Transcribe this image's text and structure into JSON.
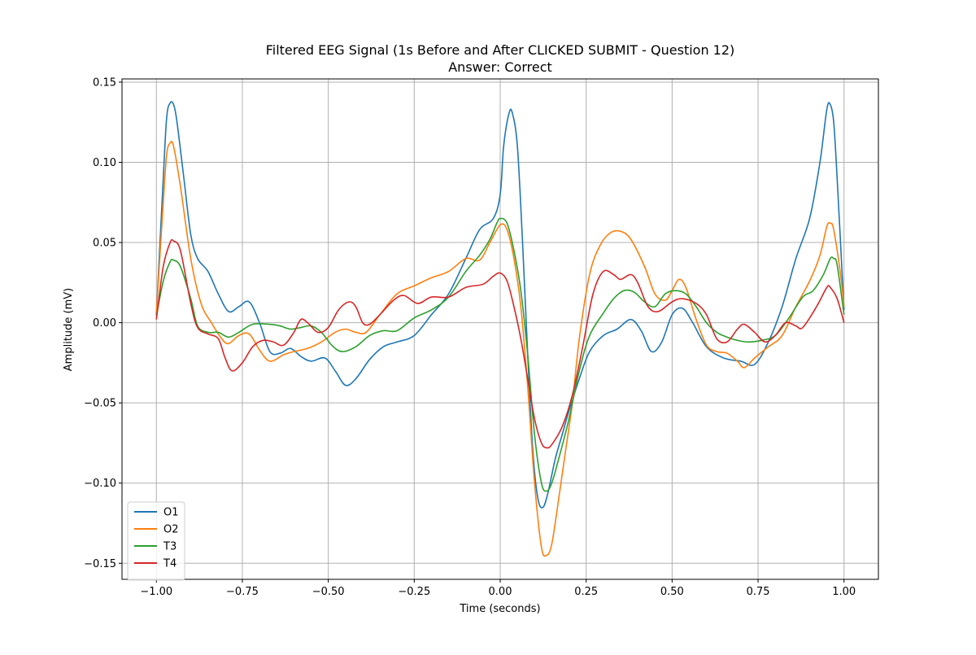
{
  "chart_data": {
    "type": "line",
    "title": "Filtered EEG Signal (1s Before and After CLICKED SUBMIT - Question 12)",
    "subtitle": "Answer: Correct",
    "xlabel": "Time (seconds)",
    "ylabel": "Amplitude (mV)",
    "xlim": [
      -1.1,
      1.1
    ],
    "ylim": [
      -0.16,
      0.152
    ],
    "xticks": [
      -1.0,
      -0.75,
      -0.5,
      -0.25,
      0.0,
      0.25,
      0.5,
      0.75,
      1.0
    ],
    "xtick_labels": [
      "−1.00",
      "−0.75",
      "−0.50",
      "−0.25",
      "0.00",
      "0.25",
      "0.50",
      "0.75",
      "1.00"
    ],
    "yticks": [
      -0.15,
      -0.1,
      -0.05,
      0.0,
      0.05,
      0.1,
      0.15
    ],
    "ytick_labels": [
      "−0.15",
      "−0.10",
      "−0.05",
      "0.00",
      "0.05",
      "0.10",
      "0.15"
    ],
    "grid": true,
    "legend_position": "lower-left",
    "series": [
      {
        "name": "O1",
        "color": "#1f77b4",
        "points": [
          [
            -1.0,
            0.005
          ],
          [
            -0.98,
            0.09
          ],
          [
            -0.97,
            0.128
          ],
          [
            -0.96,
            0.137
          ],
          [
            -0.95,
            0.136
          ],
          [
            -0.94,
            0.125
          ],
          [
            -0.92,
            0.09
          ],
          [
            -0.9,
            0.055
          ],
          [
            -0.88,
            0.04
          ],
          [
            -0.85,
            0.032
          ],
          [
            -0.82,
            0.018
          ],
          [
            -0.79,
            0.007
          ],
          [
            -0.76,
            0.01
          ],
          [
            -0.73,
            0.013
          ],
          [
            -0.7,
            0.0
          ],
          [
            -0.67,
            -0.018
          ],
          [
            -0.64,
            -0.019
          ],
          [
            -0.61,
            -0.016
          ],
          [
            -0.58,
            -0.021
          ],
          [
            -0.55,
            -0.024
          ],
          [
            -0.51,
            -0.022
          ],
          [
            -0.48,
            -0.03
          ],
          [
            -0.45,
            -0.039
          ],
          [
            -0.42,
            -0.035
          ],
          [
            -0.38,
            -0.023
          ],
          [
            -0.34,
            -0.015
          ],
          [
            -0.3,
            -0.012
          ],
          [
            -0.25,
            -0.008
          ],
          [
            -0.2,
            0.005
          ],
          [
            -0.15,
            0.018
          ],
          [
            -0.1,
            0.04
          ],
          [
            -0.06,
            0.058
          ],
          [
            -0.02,
            0.065
          ],
          [
            0.0,
            0.08
          ],
          [
            0.01,
            0.11
          ],
          [
            0.025,
            0.13
          ],
          [
            0.035,
            0.131
          ],
          [
            0.05,
            0.11
          ],
          [
            0.065,
            0.05
          ],
          [
            0.08,
            -0.02
          ],
          [
            0.095,
            -0.08
          ],
          [
            0.11,
            -0.11
          ],
          [
            0.125,
            -0.115
          ],
          [
            0.14,
            -0.105
          ],
          [
            0.16,
            -0.085
          ],
          [
            0.18,
            -0.07
          ],
          [
            0.2,
            -0.055
          ],
          [
            0.23,
            -0.035
          ],
          [
            0.26,
            -0.018
          ],
          [
            0.3,
            -0.008
          ],
          [
            0.34,
            -0.004
          ],
          [
            0.38,
            0.002
          ],
          [
            0.41,
            -0.005
          ],
          [
            0.44,
            -0.018
          ],
          [
            0.47,
            -0.012
          ],
          [
            0.5,
            0.005
          ],
          [
            0.53,
            0.009
          ],
          [
            0.56,
            0.0
          ],
          [
            0.6,
            -0.015
          ],
          [
            0.65,
            -0.022
          ],
          [
            0.7,
            -0.024
          ],
          [
            0.74,
            -0.026
          ],
          [
            0.78,
            -0.012
          ],
          [
            0.82,
            0.01
          ],
          [
            0.86,
            0.04
          ],
          [
            0.9,
            0.065
          ],
          [
            0.93,
            0.1
          ],
          [
            0.95,
            0.133
          ],
          [
            0.96,
            0.136
          ],
          [
            0.97,
            0.125
          ],
          [
            0.98,
            0.09
          ],
          [
            1.0,
            0.008
          ]
        ]
      },
      {
        "name": "O2",
        "color": "#ff7f0e",
        "points": [
          [
            -1.0,
            0.006
          ],
          [
            -0.98,
            0.075
          ],
          [
            -0.97,
            0.105
          ],
          [
            -0.96,
            0.112
          ],
          [
            -0.95,
            0.11
          ],
          [
            -0.93,
            0.085
          ],
          [
            -0.9,
            0.04
          ],
          [
            -0.87,
            0.012
          ],
          [
            -0.84,
            0.0
          ],
          [
            -0.81,
            -0.01
          ],
          [
            -0.79,
            -0.013
          ],
          [
            -0.76,
            -0.008
          ],
          [
            -0.73,
            -0.007
          ],
          [
            -0.7,
            -0.017
          ],
          [
            -0.67,
            -0.024
          ],
          [
            -0.63,
            -0.02
          ],
          [
            -0.6,
            -0.018
          ],
          [
            -0.56,
            -0.016
          ],
          [
            -0.52,
            -0.012
          ],
          [
            -0.48,
            -0.006
          ],
          [
            -0.45,
            -0.004
          ],
          [
            -0.42,
            -0.006
          ],
          [
            -0.39,
            -0.006
          ],
          [
            -0.35,
            0.005
          ],
          [
            -0.3,
            0.018
          ],
          [
            -0.25,
            0.023
          ],
          [
            -0.2,
            0.028
          ],
          [
            -0.15,
            0.032
          ],
          [
            -0.1,
            0.04
          ],
          [
            -0.06,
            0.039
          ],
          [
            -0.03,
            0.05
          ],
          [
            0.0,
            0.061
          ],
          [
            0.02,
            0.058
          ],
          [
            0.04,
            0.04
          ],
          [
            0.06,
            0.01
          ],
          [
            0.08,
            -0.04
          ],
          [
            0.1,
            -0.1
          ],
          [
            0.12,
            -0.14
          ],
          [
            0.135,
            -0.145
          ],
          [
            0.15,
            -0.138
          ],
          [
            0.17,
            -0.11
          ],
          [
            0.19,
            -0.08
          ],
          [
            0.21,
            -0.05
          ],
          [
            0.23,
            -0.01
          ],
          [
            0.26,
            0.03
          ],
          [
            0.29,
            0.048
          ],
          [
            0.32,
            0.056
          ],
          [
            0.35,
            0.057
          ],
          [
            0.38,
            0.052
          ],
          [
            0.42,
            0.035
          ],
          [
            0.45,
            0.018
          ],
          [
            0.48,
            0.014
          ],
          [
            0.5,
            0.02
          ],
          [
            0.52,
            0.027
          ],
          [
            0.54,
            0.022
          ],
          [
            0.57,
            0.002
          ],
          [
            0.6,
            -0.014
          ],
          [
            0.63,
            -0.018
          ],
          [
            0.66,
            -0.019
          ],
          [
            0.69,
            -0.024
          ],
          [
            0.71,
            -0.028
          ],
          [
            0.74,
            -0.022
          ],
          [
            0.78,
            -0.015
          ],
          [
            0.82,
            -0.008
          ],
          [
            0.86,
            0.01
          ],
          [
            0.9,
            0.026
          ],
          [
            0.93,
            0.042
          ],
          [
            0.95,
            0.06
          ],
          [
            0.96,
            0.062
          ],
          [
            0.97,
            0.058
          ],
          [
            0.99,
            0.03
          ],
          [
            1.0,
            0.01
          ]
        ]
      },
      {
        "name": "T3",
        "color": "#2ca02c",
        "points": [
          [
            -1.0,
            0.004
          ],
          [
            -0.98,
            0.026
          ],
          [
            -0.96,
            0.038
          ],
          [
            -0.95,
            0.039
          ],
          [
            -0.93,
            0.035
          ],
          [
            -0.9,
            0.015
          ],
          [
            -0.88,
            -0.002
          ],
          [
            -0.85,
            -0.006
          ],
          [
            -0.82,
            -0.006
          ],
          [
            -0.79,
            -0.009
          ],
          [
            -0.76,
            -0.006
          ],
          [
            -0.72,
            -0.001
          ],
          [
            -0.67,
            -0.001
          ],
          [
            -0.64,
            -0.002
          ],
          [
            -0.61,
            -0.004
          ],
          [
            -0.58,
            -0.003
          ],
          [
            -0.55,
            -0.002
          ],
          [
            -0.52,
            -0.006
          ],
          [
            -0.49,
            -0.014
          ],
          [
            -0.46,
            -0.018
          ],
          [
            -0.42,
            -0.015
          ],
          [
            -0.38,
            -0.008
          ],
          [
            -0.34,
            -0.005
          ],
          [
            -0.3,
            -0.005
          ],
          [
            -0.25,
            0.003
          ],
          [
            -0.2,
            0.008
          ],
          [
            -0.15,
            0.016
          ],
          [
            -0.1,
            0.032
          ],
          [
            -0.06,
            0.042
          ],
          [
            -0.03,
            0.052
          ],
          [
            -0.01,
            0.062
          ],
          [
            0.0,
            0.065
          ],
          [
            0.02,
            0.062
          ],
          [
            0.04,
            0.045
          ],
          [
            0.06,
            0.02
          ],
          [
            0.08,
            -0.02
          ],
          [
            0.1,
            -0.07
          ],
          [
            0.12,
            -0.1
          ],
          [
            0.135,
            -0.105
          ],
          [
            0.15,
            -0.1
          ],
          [
            0.17,
            -0.085
          ],
          [
            0.2,
            -0.06
          ],
          [
            0.23,
            -0.03
          ],
          [
            0.26,
            -0.008
          ],
          [
            0.3,
            0.006
          ],
          [
            0.33,
            0.015
          ],
          [
            0.36,
            0.02
          ],
          [
            0.39,
            0.019
          ],
          [
            0.42,
            0.013
          ],
          [
            0.45,
            0.01
          ],
          [
            0.48,
            0.018
          ],
          [
            0.51,
            0.02
          ],
          [
            0.54,
            0.018
          ],
          [
            0.57,
            0.01
          ],
          [
            0.6,
            0.0
          ],
          [
            0.63,
            -0.006
          ],
          [
            0.66,
            -0.009
          ],
          [
            0.69,
            -0.011
          ],
          [
            0.72,
            -0.012
          ],
          [
            0.76,
            -0.011
          ],
          [
            0.8,
            -0.008
          ],
          [
            0.84,
            0.003
          ],
          [
            0.88,
            0.016
          ],
          [
            0.91,
            0.02
          ],
          [
            0.94,
            0.03
          ],
          [
            0.96,
            0.04
          ],
          [
            0.97,
            0.04
          ],
          [
            0.98,
            0.036
          ],
          [
            1.0,
            0.005
          ]
        ]
      },
      {
        "name": "T4",
        "color": "#d62728",
        "points": [
          [
            -1.0,
            0.002
          ],
          [
            -0.98,
            0.035
          ],
          [
            -0.96,
            0.05
          ],
          [
            -0.95,
            0.051
          ],
          [
            -0.93,
            0.045
          ],
          [
            -0.9,
            0.012
          ],
          [
            -0.88,
            -0.003
          ],
          [
            -0.85,
            -0.007
          ],
          [
            -0.82,
            -0.01
          ],
          [
            -0.8,
            -0.022
          ],
          [
            -0.78,
            -0.03
          ],
          [
            -0.75,
            -0.025
          ],
          [
            -0.72,
            -0.015
          ],
          [
            -0.69,
            -0.011
          ],
          [
            -0.66,
            -0.012
          ],
          [
            -0.63,
            -0.014
          ],
          [
            -0.6,
            -0.006
          ],
          [
            -0.58,
            0.002
          ],
          [
            -0.56,
            0.0
          ],
          [
            -0.53,
            -0.006
          ],
          [
            -0.5,
            -0.003
          ],
          [
            -0.47,
            0.008
          ],
          [
            -0.44,
            0.013
          ],
          [
            -0.42,
            0.01
          ],
          [
            -0.4,
            0.0
          ],
          [
            -0.38,
            -0.001
          ],
          [
            -0.35,
            0.005
          ],
          [
            -0.31,
            0.014
          ],
          [
            -0.28,
            0.017
          ],
          [
            -0.24,
            0.012
          ],
          [
            -0.2,
            0.016
          ],
          [
            -0.15,
            0.016
          ],
          [
            -0.1,
            0.022
          ],
          [
            -0.05,
            0.024
          ],
          [
            -0.02,
            0.029
          ],
          [
            0.0,
            0.031
          ],
          [
            0.02,
            0.026
          ],
          [
            0.04,
            0.01
          ],
          [
            0.06,
            -0.01
          ],
          [
            0.08,
            -0.035
          ],
          [
            0.1,
            -0.06
          ],
          [
            0.12,
            -0.075
          ],
          [
            0.135,
            -0.078
          ],
          [
            0.15,
            -0.076
          ],
          [
            0.18,
            -0.065
          ],
          [
            0.21,
            -0.045
          ],
          [
            0.24,
            -0.015
          ],
          [
            0.27,
            0.018
          ],
          [
            0.3,
            0.032
          ],
          [
            0.33,
            0.03
          ],
          [
            0.35,
            0.027
          ],
          [
            0.38,
            0.03
          ],
          [
            0.4,
            0.025
          ],
          [
            0.43,
            0.01
          ],
          [
            0.46,
            0.007
          ],
          [
            0.5,
            0.013
          ],
          [
            0.53,
            0.015
          ],
          [
            0.57,
            0.012
          ],
          [
            0.6,
            0.005
          ],
          [
            0.63,
            -0.01
          ],
          [
            0.66,
            -0.012
          ],
          [
            0.69,
            -0.004
          ],
          [
            0.71,
            -0.001
          ],
          [
            0.74,
            -0.006
          ],
          [
            0.77,
            -0.012
          ],
          [
            0.8,
            -0.008
          ],
          [
            0.83,
            0.0
          ],
          [
            0.86,
            -0.002
          ],
          [
            0.88,
            -0.003
          ],
          [
            0.92,
            0.01
          ],
          [
            0.95,
            0.022
          ],
          [
            0.96,
            0.022
          ],
          [
            0.98,
            0.015
          ],
          [
            1.0,
            0.0
          ]
        ]
      }
    ]
  }
}
